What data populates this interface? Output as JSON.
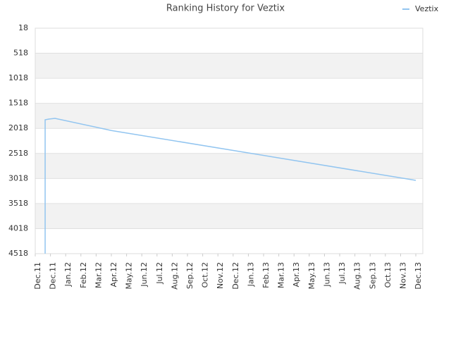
{
  "chart_data": {
    "type": "line",
    "title": "Ranking History for Veztix",
    "x": [
      0.65,
      0.65,
      0.9,
      1.3,
      5,
      25
    ],
    "series": [
      {
        "name": "Veztix",
        "color": "#92c5f0",
        "values": [
          4518,
          1846,
          1832,
          1818,
          2060,
          3055
        ]
      }
    ],
    "xlim": [
      0,
      25.46
    ],
    "xticks": [
      {
        "value": 0,
        "label": "Dec.11"
      },
      {
        "value": 1,
        "label": "Dec.11"
      },
      {
        "value": 2,
        "label": "Jan.12"
      },
      {
        "value": 3,
        "label": "Feb.12"
      },
      {
        "value": 4,
        "label": "Mar.12"
      },
      {
        "value": 5,
        "label": "Apr.12"
      },
      {
        "value": 6,
        "label": "May.12"
      },
      {
        "value": 7,
        "label": "Jun.12"
      },
      {
        "value": 8,
        "label": "Jul.12"
      },
      {
        "value": 9,
        "label": "Aug.12"
      },
      {
        "value": 10,
        "label": "Sep.12"
      },
      {
        "value": 11,
        "label": "Oct.12"
      },
      {
        "value": 12,
        "label": "Nov.12"
      },
      {
        "value": 13,
        "label": "Dec.12"
      },
      {
        "value": 14,
        "label": "Jan.13"
      },
      {
        "value": 15,
        "label": "Feb.13"
      },
      {
        "value": 16,
        "label": "Mar.13"
      },
      {
        "value": 17,
        "label": "Apr.13"
      },
      {
        "value": 18,
        "label": "May.13"
      },
      {
        "value": 19,
        "label": "Jun.13"
      },
      {
        "value": 20,
        "label": "Jul.13"
      },
      {
        "value": 21,
        "label": "Aug.13"
      },
      {
        "value": 22,
        "label": "Sep.13"
      },
      {
        "value": 23,
        "label": "Oct.13"
      },
      {
        "value": 24,
        "label": "Nov.13"
      },
      {
        "value": 25,
        "label": "Dec.13"
      }
    ],
    "ylim": [
      4518,
      18
    ],
    "yticks": [
      18,
      518,
      1018,
      1518,
      2018,
      2518,
      3018,
      3518,
      4018,
      4518
    ],
    "grid": true,
    "legend": "top-right"
  }
}
